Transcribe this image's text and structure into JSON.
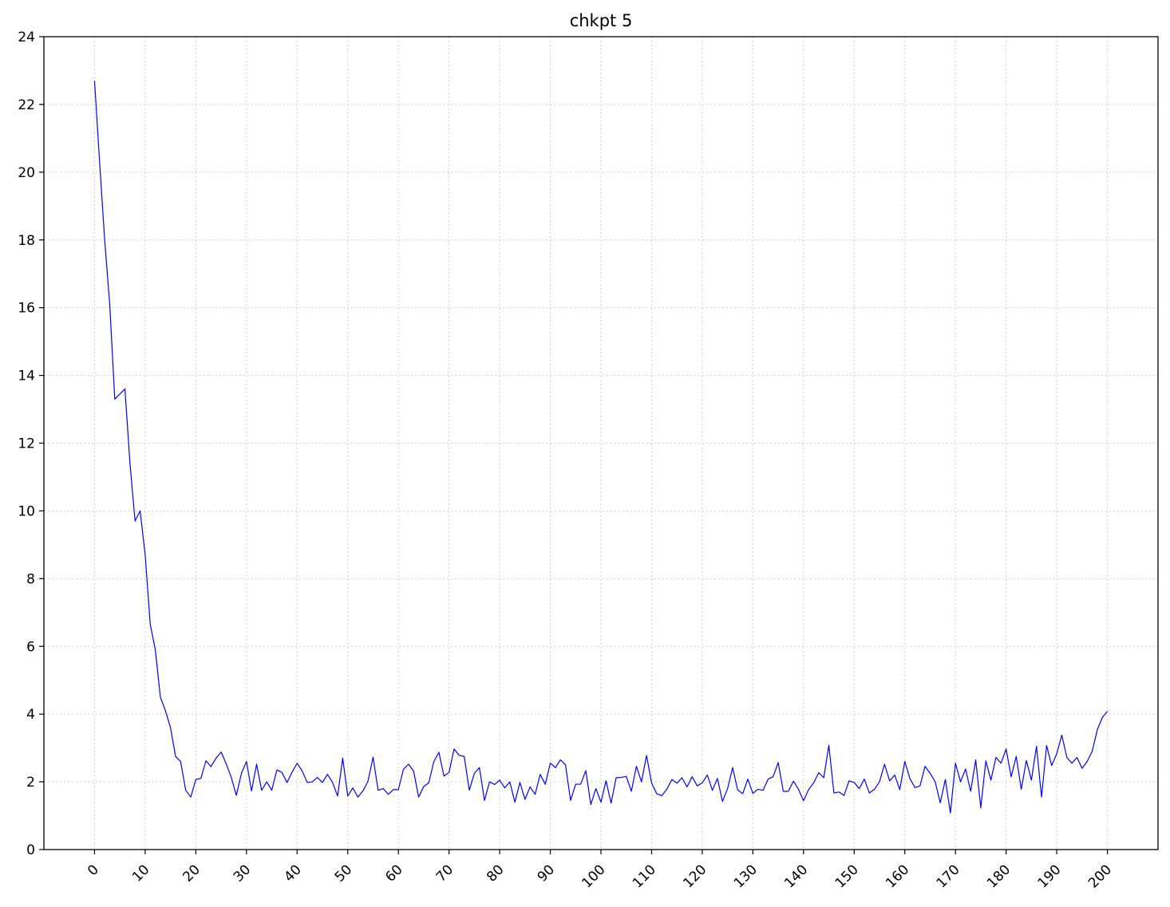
{
  "chart_data": {
    "type": "line",
    "title": "chkpt 5",
    "xlabel": "",
    "ylabel": "",
    "xlim": [
      -10,
      210
    ],
    "ylim": [
      0,
      24
    ],
    "xticks": [
      0,
      10,
      20,
      30,
      40,
      50,
      60,
      70,
      80,
      90,
      100,
      110,
      120,
      130,
      140,
      150,
      160,
      170,
      180,
      190,
      200
    ],
    "xtick_labels": [
      "0",
      "10",
      "20",
      "30",
      "40",
      "50",
      "60",
      "70",
      "80",
      "90",
      "100",
      "110",
      "120",
      "130",
      "140",
      "150",
      "160",
      "170",
      "180",
      "190",
      "200"
    ],
    "yticks": [
      0,
      2,
      4,
      6,
      8,
      10,
      12,
      14,
      16,
      18,
      20,
      22,
      24
    ],
    "ytick_labels": [
      "0",
      "2",
      "4",
      "6",
      "8",
      "10",
      "12",
      "14",
      "16",
      "18",
      "20",
      "22",
      "24"
    ],
    "grid": true,
    "colors": {
      "line": "#0000ff"
    },
    "series": [
      {
        "x": [
          0,
          1,
          2,
          3,
          4,
          5,
          6,
          7,
          8,
          9,
          10,
          11,
          12,
          13,
          14,
          15,
          16,
          17,
          18,
          19,
          20,
          21,
          22,
          23,
          24,
          25,
          26,
          27,
          28,
          29,
          30,
          31,
          32,
          33,
          34,
          35,
          36,
          37,
          38,
          39,
          40,
          41,
          42,
          43,
          44,
          45,
          46,
          47,
          48,
          49,
          50,
          51,
          52,
          53,
          54,
          55,
          56,
          57,
          58,
          59,
          60,
          61,
          62,
          63,
          64,
          65,
          66,
          67,
          68,
          69,
          70,
          71,
          72,
          73,
          74,
          75,
          76,
          77,
          78,
          79,
          80,
          81,
          82,
          83,
          84,
          85,
          86,
          87,
          88,
          89,
          90,
          91,
          92,
          93,
          94,
          95,
          96,
          97,
          98,
          99,
          100,
          101,
          102,
          103,
          104,
          105,
          106,
          107,
          108,
          109,
          110,
          111,
          112,
          113,
          114,
          115,
          116,
          117,
          118,
          119,
          120,
          121,
          122,
          123,
          124,
          125,
          126,
          127,
          128,
          129,
          130,
          131,
          132,
          133,
          134,
          135,
          136,
          137,
          138,
          139,
          140,
          141,
          142,
          143,
          144,
          145,
          146,
          147,
          148,
          149,
          150,
          151,
          152,
          153,
          154,
          155,
          156,
          157,
          158,
          159,
          160,
          161,
          162,
          163,
          164,
          165,
          166,
          167,
          168,
          169,
          170,
          171,
          172,
          173,
          174,
          175,
          176,
          177,
          178,
          179,
          180,
          181,
          182,
          183,
          184,
          185,
          186,
          187,
          188,
          189,
          190,
          191,
          192,
          193,
          194,
          195,
          196,
          197,
          198,
          199,
          200
        ],
        "values": [
          22.7,
          20.3,
          18.0,
          16.1,
          13.3,
          13.45,
          13.6,
          11.4,
          9.7,
          10.0,
          8.7,
          6.65,
          5.9,
          4.5,
          4.1,
          3.6,
          2.75,
          2.6,
          1.75,
          1.55,
          2.07,
          2.1,
          2.62,
          2.45,
          2.7,
          2.88,
          2.53,
          2.13,
          1.6,
          2.25,
          2.6,
          1.73,
          2.52,
          1.75,
          2.0,
          1.75,
          2.35,
          2.28,
          1.98,
          2.28,
          2.55,
          2.32,
          1.98,
          2.0,
          2.13,
          1.98,
          2.22,
          1.98,
          1.58,
          2.7,
          1.58,
          1.82,
          1.55,
          1.73,
          2.02,
          2.73,
          1.75,
          1.8,
          1.63,
          1.77,
          1.77,
          2.37,
          2.52,
          2.32,
          1.55,
          1.86,
          1.97,
          2.6,
          2.87,
          2.17,
          2.28,
          2.97,
          2.78,
          2.75,
          1.75,
          2.25,
          2.42,
          1.45,
          2.0,
          1.92,
          2.05,
          1.82,
          2.0,
          1.4,
          1.98,
          1.48,
          1.85,
          1.63,
          2.22,
          1.93,
          2.55,
          2.42,
          2.65,
          2.5,
          1.45,
          1.93,
          1.93,
          2.33,
          1.33,
          1.8,
          1.4,
          2.03,
          1.37,
          2.12,
          2.13,
          2.16,
          1.72,
          2.46,
          2.0,
          2.78,
          1.97,
          1.65,
          1.59,
          1.78,
          2.07,
          1.96,
          2.12,
          1.85,
          2.15,
          1.88,
          1.97,
          2.2,
          1.75,
          2.1,
          1.42,
          1.8,
          2.42,
          1.76,
          1.65,
          2.08,
          1.66,
          1.78,
          1.75,
          2.08,
          2.15,
          2.57,
          1.72,
          1.72,
          2.02,
          1.78,
          1.44,
          1.77,
          1.97,
          2.27,
          2.12,
          3.08,
          1.67,
          1.7,
          1.6,
          2.03,
          1.98,
          1.8,
          2.08,
          1.67,
          1.78,
          2.0,
          2.52,
          2.03,
          2.2,
          1.77,
          2.6,
          2.1,
          1.83,
          1.88,
          2.46,
          2.25,
          2.0,
          1.38,
          2.07,
          1.08,
          2.55,
          2.0,
          2.38,
          1.72,
          2.65,
          1.23,
          2.62,
          2.05,
          2.72,
          2.55,
          2.97,
          2.15,
          2.75,
          1.78,
          2.63,
          2.05,
          3.05,
          1.55,
          3.07,
          2.48,
          2.83,
          3.38,
          2.72,
          2.55,
          2.72,
          2.4,
          2.6,
          2.9,
          3.53,
          3.9,
          4.08
        ]
      }
    ]
  }
}
